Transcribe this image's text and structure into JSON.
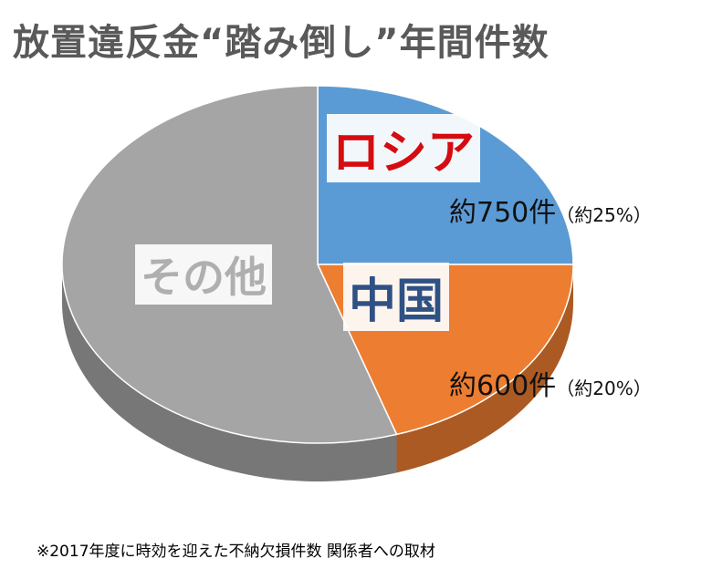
{
  "title": "放置違反金“踏み倒し”年間件数",
  "chart_data": {
    "type": "pie",
    "title": "放置違反金“踏み倒し”年間件数",
    "slices": [
      {
        "name": "ロシア",
        "value": 25,
        "count_label": "約750件",
        "pct_label": "（約25%）",
        "color": "#5b9bd5"
      },
      {
        "name": "中国",
        "value": 20,
        "count_label": "約600件",
        "pct_label": "（約20%）",
        "color": "#ed7d31"
      },
      {
        "name": "その他",
        "value": 55,
        "color": "#a5a5a5"
      }
    ]
  },
  "footnote": "※2017年度に時効を迎えた不納欠損件数 関係者への取材"
}
